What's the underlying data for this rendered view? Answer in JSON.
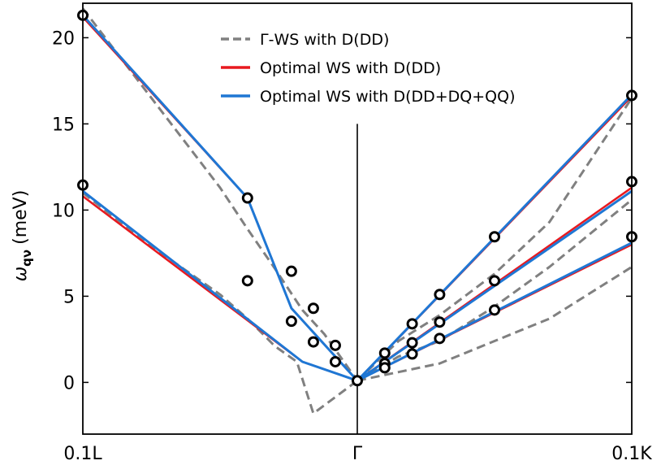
{
  "chart_data": {
    "type": "line",
    "ylabel": "(meV)",
    "ylabel_symbol": "ω",
    "ylabel_subscript": "qν",
    "ylim": [
      -3,
      22
    ],
    "yticks": [
      0,
      5,
      10,
      15,
      20
    ],
    "xticks": [
      "0.1L",
      "Γ",
      "0.1K"
    ],
    "xrange": [
      -1,
      1
    ],
    "gamma_x": 0,
    "legend_position": "top-right",
    "colors": {
      "gws": "#808080",
      "opt_dd": "#e8191f",
      "opt_full": "#1f77d4",
      "marker": "#000000"
    },
    "series": [
      {
        "name": "Γ-WS with D(DD)",
        "color": "#808080",
        "style": "dashed",
        "lines": [
          {
            "x": [
              -1.0,
              -0.75,
              -0.5,
              -0.4,
              -0.3,
              -0.2,
              -0.12,
              0.0
            ],
            "y": [
              21.7,
              16.5,
              11.3,
              8.9,
              6.6,
              4.2,
              2.8,
              0.1
            ]
          },
          {
            "x": [
              -1.0,
              -0.75,
              -0.5,
              -0.4,
              -0.3,
              -0.22,
              -0.16,
              0.0
            ],
            "y": [
              11.0,
              7.9,
              5.1,
              3.7,
              2.1,
              1.2,
              -1.8,
              0.1
            ]
          },
          {
            "x": [
              0.0,
              0.15,
              0.3,
              0.5,
              0.7,
              1.0
            ],
            "y": [
              0.1,
              2.4,
              3.9,
              6.3,
              9.3,
              16.5
            ]
          },
          {
            "x": [
              0.0,
              0.15,
              0.3,
              0.5,
              0.7,
              1.0
            ],
            "y": [
              0.1,
              1.5,
              2.4,
              4.4,
              6.7,
              10.6
            ]
          },
          {
            "x": [
              0.0,
              0.15,
              0.3,
              0.5,
              0.7,
              1.0
            ],
            "y": [
              0.1,
              0.6,
              1.1,
              2.4,
              3.7,
              6.7
            ]
          }
        ]
      },
      {
        "name": "Optimal WS with D(DD)",
        "color": "#e8191f",
        "style": "solid",
        "lines": [
          {
            "x": [
              -1.0,
              -0.4,
              -0.24,
              0.0
            ],
            "y": [
              21.2,
              10.7,
              4.3,
              0.1
            ]
          },
          {
            "x": [
              -1.0,
              -0.2,
              0.0
            ],
            "y": [
              10.8,
              1.2,
              0.1
            ]
          },
          {
            "x": [
              0.0,
              1.0
            ],
            "y": [
              0.1,
              16.6
            ]
          },
          {
            "x": [
              0.0,
              1.0
            ],
            "y": [
              0.1,
              11.3
            ]
          },
          {
            "x": [
              0.0,
              1.0
            ],
            "y": [
              0.1,
              8.0
            ]
          }
        ]
      },
      {
        "name": "Optimal WS with D(DD+DQ+QQ)",
        "color": "#1f77d4",
        "style": "solid",
        "lines": [
          {
            "x": [
              -1.0,
              -0.4,
              -0.24,
              0.0
            ],
            "y": [
              21.3,
              10.7,
              4.3,
              0.1
            ]
          },
          {
            "x": [
              -1.0,
              -0.2,
              0.0
            ],
            "y": [
              11.1,
              1.2,
              0.1
            ]
          },
          {
            "x": [
              0.0,
              1.0
            ],
            "y": [
              0.1,
              16.7
            ]
          },
          {
            "x": [
              0.0,
              1.0
            ],
            "y": [
              0.1,
              11.1
            ]
          },
          {
            "x": [
              0.0,
              1.0
            ],
            "y": [
              0.1,
              8.1
            ]
          }
        ]
      }
    ],
    "markers": {
      "x": [
        -1.0,
        -0.4,
        -0.24,
        -0.16,
        -0.08,
        -1.0,
        -0.4,
        -0.24,
        -0.16,
        -0.08,
        0.0,
        0.1,
        0.2,
        0.3,
        0.5,
        1.0,
        0.1,
        0.2,
        0.3,
        0.5,
        1.0,
        0.1,
        0.2,
        0.3,
        0.5,
        1.0
      ],
      "y": [
        21.3,
        10.7,
        6.45,
        4.3,
        2.15,
        11.45,
        5.9,
        3.55,
        2.35,
        1.2,
        0.1,
        1.7,
        3.4,
        5.1,
        8.45,
        16.65,
        1.1,
        2.3,
        3.5,
        5.9,
        11.65,
        0.85,
        1.65,
        2.55,
        4.2,
        8.45
      ]
    }
  }
}
